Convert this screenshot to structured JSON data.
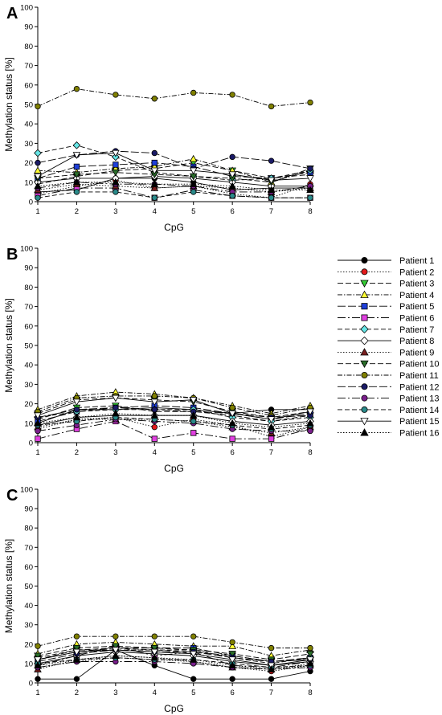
{
  "styles": {
    "Patient 1": {
      "color": "#000000",
      "marker": "circle",
      "dash": ""
    },
    "Patient 2": {
      "color": "#e31a1c",
      "marker": "circle",
      "dash": "1.5,2"
    },
    "Patient 3": {
      "color": "#33cc33",
      "marker": "triangle-down",
      "dash": "7,3"
    },
    "Patient 4": {
      "color": "#ffff33",
      "marker": "triangle-up",
      "dash": "6,2,1.5,2"
    },
    "Patient 5": {
      "color": "#1f3fd8",
      "marker": "square",
      "dash": "10,3"
    },
    "Patient 6": {
      "color": "#e040e0",
      "marker": "square",
      "dash": "10,3,2,3"
    },
    "Patient 7": {
      "color": "#66e6e6",
      "marker": "diamond",
      "dash": "6,3"
    },
    "Patient 8": {
      "color": "#ffffff",
      "marker": "diamond",
      "dash": ""
    },
    "Patient 9": {
      "color": "#7a1f1f",
      "marker": "triangle-up",
      "dash": "1.5,2"
    },
    "Patient 10": {
      "color": "#2a6e2a",
      "marker": "triangle-down",
      "dash": "7,3"
    },
    "Patient 11": {
      "color": "#808000",
      "marker": "circle",
      "dash": "6,2,1.5,2"
    },
    "Patient 12": {
      "color": "#1a1a66",
      "marker": "circle",
      "dash": "10,3"
    },
    "Patient 13": {
      "color": "#7a1f8c",
      "marker": "circle",
      "dash": "10,3,2,3"
    },
    "Patient 14": {
      "color": "#2a8a8a",
      "marker": "circle",
      "dash": "6,3"
    },
    "Patient 15": {
      "color": "#ffffff",
      "marker": "triangle-down",
      "dash": ""
    },
    "Patient 16": {
      "color": "#000000",
      "marker": "triangle-up",
      "dash": "1.5,2"
    }
  },
  "legend": {
    "entries": [
      "Patient 1",
      "Patient 2",
      "Patient 3",
      "Patient 4",
      "Patient 5",
      "Patient 6",
      "Patient 7",
      "Patient 8",
      "Patient 9",
      "Patient 10",
      "Patient 11",
      "Patient 12",
      "Patient 13",
      "Patient 14",
      "Patient 15",
      "Patient 16"
    ],
    "placement": "right"
  },
  "chart_data": [
    {
      "type": "line",
      "panel": "A",
      "xlabel": "CpG",
      "ylabel": "Methylation status [%]",
      "x": [
        1,
        2,
        3,
        4,
        5,
        6,
        7,
        8
      ],
      "xlim": [
        1,
        8
      ],
      "ylim": [
        0,
        100
      ],
      "yticks": [
        0,
        10,
        20,
        30,
        40,
        50,
        60,
        70,
        80,
        90,
        100
      ],
      "grid": false,
      "series": [
        {
          "name": "Patient 1",
          "values": [
            5,
            6,
            12,
            12,
            10,
            6,
            7,
            7
          ]
        },
        {
          "name": "Patient 2",
          "values": [
            4,
            8,
            11,
            7,
            8,
            4,
            2,
            9
          ]
        },
        {
          "name": "Patient 3",
          "values": [
            9,
            13,
            16,
            17,
            20,
            16,
            12,
            14
          ]
        },
        {
          "name": "Patient 4",
          "values": [
            16,
            15,
            17,
            18,
            22,
            16,
            10,
            16
          ]
        },
        {
          "name": "Patient 5",
          "values": [
            12,
            18,
            19,
            20,
            18,
            13,
            12,
            15
          ]
        },
        {
          "name": "Patient 6",
          "values": [
            3,
            7,
            7,
            2,
            6,
            3,
            2,
            2
          ]
        },
        {
          "name": "Patient 7",
          "values": [
            25,
            29,
            23,
            15,
            13,
            11,
            12,
            16
          ]
        },
        {
          "name": "Patient 8",
          "values": [
            10,
            12,
            12,
            13,
            12,
            10,
            8,
            8
          ]
        },
        {
          "name": "Patient 9",
          "values": [
            6,
            9,
            8,
            7,
            8,
            7,
            5,
            7
          ]
        },
        {
          "name": "Patient 10",
          "values": [
            12,
            14,
            15,
            14,
            13,
            12,
            10,
            17
          ]
        },
        {
          "name": "Patient 11",
          "values": [
            49,
            58,
            55,
            53,
            56,
            55,
            49,
            51
          ]
        },
        {
          "name": "Patient 12",
          "values": [
            20,
            24,
            26,
            25,
            17,
            23,
            21,
            17
          ]
        },
        {
          "name": "Patient 13",
          "values": [
            7,
            10,
            9,
            9,
            8,
            5,
            5,
            8
          ]
        },
        {
          "name": "Patient 14",
          "values": [
            2,
            5,
            5,
            2,
            5,
            3,
            2,
            2
          ]
        },
        {
          "name": "Patient 15",
          "values": [
            13,
            24,
            25,
            16,
            16,
            14,
            11,
            12
          ]
        },
        {
          "name": "Patient 16",
          "values": [
            8,
            10,
            10,
            9,
            9,
            8,
            6,
            6
          ]
        }
      ]
    },
    {
      "type": "line",
      "panel": "B",
      "xlabel": "CpG",
      "ylabel": "Methylation status [%]",
      "x": [
        1,
        2,
        3,
        4,
        5,
        6,
        7,
        8
      ],
      "xlim": [
        1,
        8
      ],
      "ylim": [
        0,
        100
      ],
      "yticks": [
        0,
        10,
        20,
        30,
        40,
        50,
        60,
        70,
        80,
        90,
        100
      ],
      "grid": false,
      "series": [
        {
          "name": "Patient 1",
          "values": [
            10,
            17,
            17,
            18,
            17,
            15,
            17,
            17
          ]
        },
        {
          "name": "Patient 2",
          "values": [
            7,
            12,
            13,
            8,
            12,
            9,
            3,
            8
          ]
        },
        {
          "name": "Patient 3",
          "values": [
            12,
            18,
            19,
            16,
            16,
            14,
            11,
            14
          ]
        },
        {
          "name": "Patient 4",
          "values": [
            17,
            24,
            26,
            25,
            23,
            19,
            15,
            19
          ]
        },
        {
          "name": "Patient 5",
          "values": [
            11,
            16,
            18,
            19,
            18,
            15,
            12,
            15
          ]
        },
        {
          "name": "Patient 6",
          "values": [
            2,
            7,
            11,
            2,
            5,
            2,
            2,
            7
          ]
        },
        {
          "name": "Patient 7",
          "values": [
            13,
            16,
            17,
            17,
            17,
            13,
            11,
            13
          ]
        },
        {
          "name": "Patient 8",
          "values": [
            9,
            13,
            14,
            14,
            14,
            11,
            9,
            11
          ]
        },
        {
          "name": "Patient 9",
          "values": [
            8,
            12,
            12,
            12,
            11,
            8,
            5,
            8
          ]
        },
        {
          "name": "Patient 10",
          "values": [
            15,
            22,
            23,
            22,
            21,
            16,
            13,
            16
          ]
        },
        {
          "name": "Patient 11",
          "values": [
            16,
            23,
            24,
            24,
            23,
            18,
            14,
            18
          ]
        },
        {
          "name": "Patient 12",
          "values": [
            13,
            17,
            18,
            17,
            16,
            15,
            13,
            14
          ]
        },
        {
          "name": "Patient 13",
          "values": [
            6,
            9,
            12,
            11,
            10,
            7,
            6,
            6
          ]
        },
        {
          "name": "Patient 14",
          "values": [
            9,
            11,
            13,
            12,
            11,
            9,
            7,
            9
          ]
        },
        {
          "name": "Patient 15",
          "values": [
            14,
            21,
            23,
            21,
            22,
            15,
            12,
            16
          ]
        },
        {
          "name": "Patient 16",
          "values": [
            10,
            13,
            15,
            14,
            14,
            10,
            8,
            10
          ]
        }
      ]
    },
    {
      "type": "line",
      "panel": "C",
      "xlabel": "CpG",
      "ylabel": "Methylation status [%]",
      "x": [
        1,
        2,
        3,
        4,
        5,
        6,
        7,
        8
      ],
      "xlim": [
        1,
        8
      ],
      "ylim": [
        0,
        100
      ],
      "yticks": [
        0,
        10,
        20,
        30,
        40,
        50,
        60,
        70,
        80,
        90,
        100
      ],
      "grid": false,
      "series": [
        {
          "name": "Patient 1",
          "values": [
            2,
            2,
            17,
            9,
            2,
            2,
            2,
            6
          ]
        },
        {
          "name": "Patient 2",
          "values": [
            8,
            11,
            13,
            12,
            11,
            8,
            6,
            9
          ]
        },
        {
          "name": "Patient 3",
          "values": [
            12,
            17,
            18,
            17,
            16,
            14,
            11,
            12
          ]
        },
        {
          "name": "Patient 4",
          "values": [
            15,
            20,
            21,
            20,
            19,
            19,
            14,
            17
          ]
        },
        {
          "name": "Patient 5",
          "values": [
            12,
            16,
            18,
            18,
            18,
            14,
            11,
            13
          ]
        },
        {
          "name": "Patient 6",
          "values": [
            9,
            14,
            19,
            14,
            16,
            9,
            8,
            11
          ]
        },
        {
          "name": "Patient 7",
          "values": [
            13,
            17,
            17,
            17,
            17,
            13,
            10,
            13
          ]
        },
        {
          "name": "Patient 8",
          "values": [
            10,
            14,
            16,
            15,
            14,
            11,
            9,
            11
          ]
        },
        {
          "name": "Patient 9",
          "values": [
            7,
            12,
            14,
            13,
            11,
            8,
            7,
            9
          ]
        },
        {
          "name": "Patient 10",
          "values": [
            14,
            18,
            19,
            18,
            17,
            15,
            12,
            15
          ]
        },
        {
          "name": "Patient 11",
          "values": [
            19,
            24,
            24,
            24,
            24,
            21,
            18,
            18
          ]
        },
        {
          "name": "Patient 12",
          "values": [
            11,
            15,
            17,
            16,
            16,
            13,
            11,
            12
          ]
        },
        {
          "name": "Patient 13",
          "values": [
            8,
            11,
            11,
            11,
            10,
            8,
            7,
            8
          ]
        },
        {
          "name": "Patient 14",
          "values": [
            10,
            12,
            13,
            12,
            12,
            10,
            8,
            9
          ]
        },
        {
          "name": "Patient 15",
          "values": [
            12,
            16,
            17,
            16,
            15,
            12,
            9,
            12
          ]
        },
        {
          "name": "Patient 16",
          "values": [
            9,
            12,
            14,
            13,
            12,
            9,
            7,
            10
          ]
        }
      ]
    }
  ]
}
